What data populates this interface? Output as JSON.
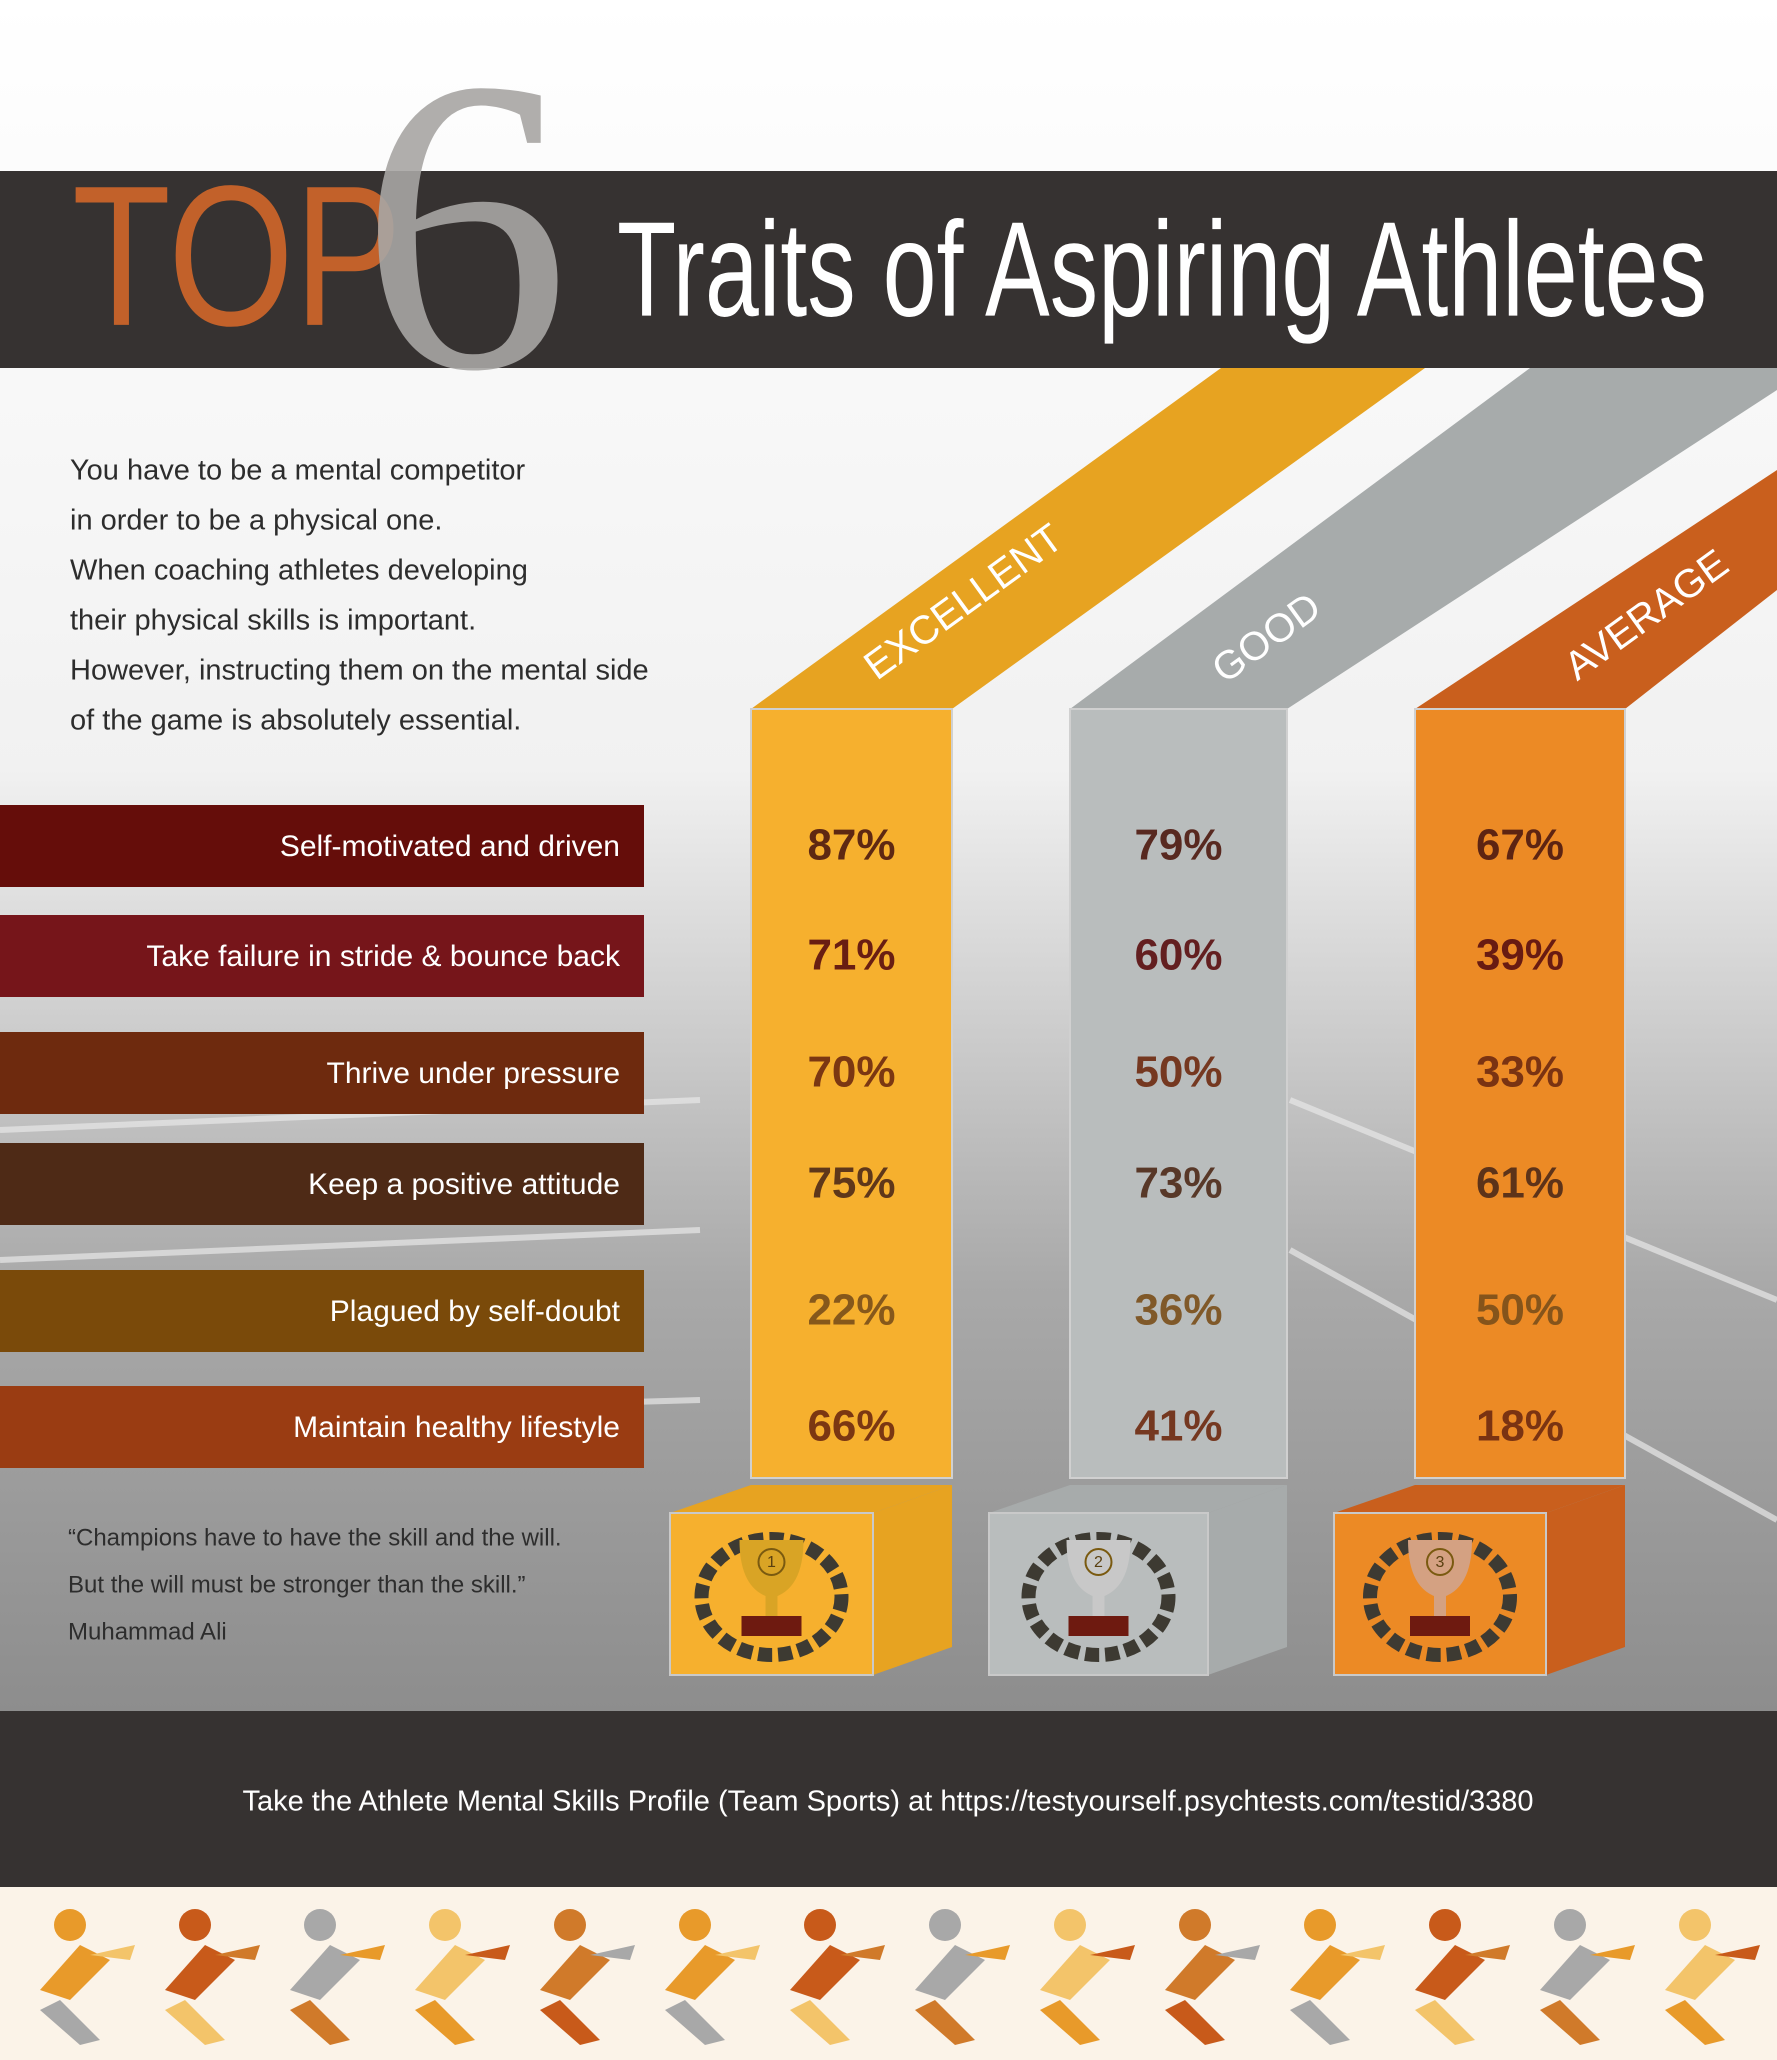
{
  "header": {
    "top": "TOP",
    "number": "6",
    "title": "Traits of Aspiring Athletes"
  },
  "intro": [
    "You have to be a mental competitor",
    "in order to be a physical one.",
    "When coaching athletes developing",
    "their physical skills is important.",
    "However, instructing them on the mental side",
    "of the game is absolutely essential."
  ],
  "columns": [
    "EXCELLENT",
    "GOOD",
    "AVERAGE"
  ],
  "ranks": [
    "1",
    "2",
    "3"
  ],
  "traits": [
    {
      "label": "Self-motivated and driven",
      "values": [
        "87%",
        "79%",
        "67%"
      ]
    },
    {
      "label": "Take failure in stride & bounce back",
      "values": [
        "71%",
        "60%",
        "39%"
      ]
    },
    {
      "label": "Thrive under pressure",
      "values": [
        "70%",
        "50%",
        "33%"
      ]
    },
    {
      "label": "Keep a positive attitude",
      "values": [
        "75%",
        "73%",
        "61%"
      ]
    },
    {
      "label": "Plagued by self-doubt",
      "values": [
        "22%",
        "36%",
        "50%"
      ]
    },
    {
      "label": "Maintain healthy lifestyle",
      "values": [
        "66%",
        "41%",
        "18%"
      ]
    }
  ],
  "quote": [
    "“Champions have to have the skill and the will.",
    "But the will must be stronger than the skill.”",
    "Muhammad Ali"
  ],
  "footer": "Take the Athlete Mental Skills Profile (Team Sports) at https://testyourself.psychtests.com/testid/3380"
}
